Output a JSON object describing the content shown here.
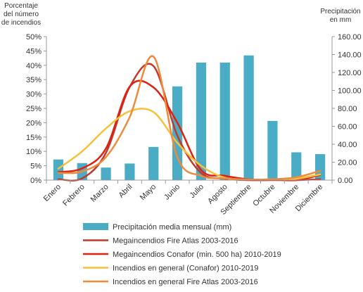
{
  "chart_data": {
    "type": "bar",
    "title": "",
    "categories": [
      "Enero",
      "Febrero",
      "Marzo",
      "Abril",
      "Mayo",
      "Junio",
      "Julio",
      "Agosto",
      "Septiembre",
      "Octubre",
      "Noviembre",
      "Diciembre"
    ],
    "y_left": {
      "label": [
        "Porcentaje",
        "del número",
        "de incendios"
      ],
      "ticks": [
        "0%",
        "5%",
        "10%",
        "15%",
        "20%",
        "25%",
        "30%",
        "35%",
        "40%",
        "45%",
        "50%"
      ],
      "range": [
        0,
        0.5
      ]
    },
    "y_right": {
      "label": [
        "Precipitación",
        "en mm"
      ],
      "ticks": [
        "0.00",
        "20.00",
        "40.00",
        "60.00",
        "80.00",
        "100.00",
        "120.00",
        "140.00",
        "160.00"
      ],
      "range": [
        0,
        160
      ]
    },
    "grid": false,
    "legend_position": "bottom",
    "series": [
      {
        "name": "Precipitación media mensual (mm)",
        "kind": "bar",
        "axis": "right",
        "color": "#4bacc6",
        "values": [
          23.0,
          19.0,
          14.0,
          18.5,
          37.0,
          104.5,
          131.0,
          131.0,
          139.0,
          66.0,
          31.0,
          29.0
        ]
      },
      {
        "name": "Megaincendios Fire Atlas 2003-2016",
        "kind": "line",
        "axis": "left",
        "color": "#c0392b",
        "values": [
          0.003,
          0.006,
          0.095,
          0.325,
          0.397,
          0.155,
          0.025,
          0.005,
          0.0,
          0.0,
          0.0,
          0.003
        ]
      },
      {
        "name": "Megaincendios Conafor (min. 500 ha) 2010-2019",
        "kind": "line",
        "axis": "left",
        "color": "#e02010",
        "values": [
          0.028,
          0.041,
          0.11,
          0.326,
          0.323,
          0.2,
          0.035,
          0.015,
          0.003,
          0.002,
          0.0,
          0.018
        ]
      },
      {
        "name": "Incendios en general (Conafor) 2010-2019",
        "kind": "line",
        "axis": "left",
        "color": "#f5c13a",
        "values": [
          0.04,
          0.1,
          0.18,
          0.24,
          0.237,
          0.13,
          0.05,
          0.008,
          0.002,
          0.003,
          0.005,
          0.02
        ]
      },
      {
        "name": "Incendios en general Fire Atlas 2003-2016",
        "kind": "line",
        "axis": "left",
        "color": "#ef8a3c",
        "values": [
          0.025,
          0.03,
          0.08,
          0.22,
          0.43,
          0.08,
          0.015,
          0.006,
          0.002,
          0.003,
          0.01,
          0.032
        ]
      }
    ]
  }
}
